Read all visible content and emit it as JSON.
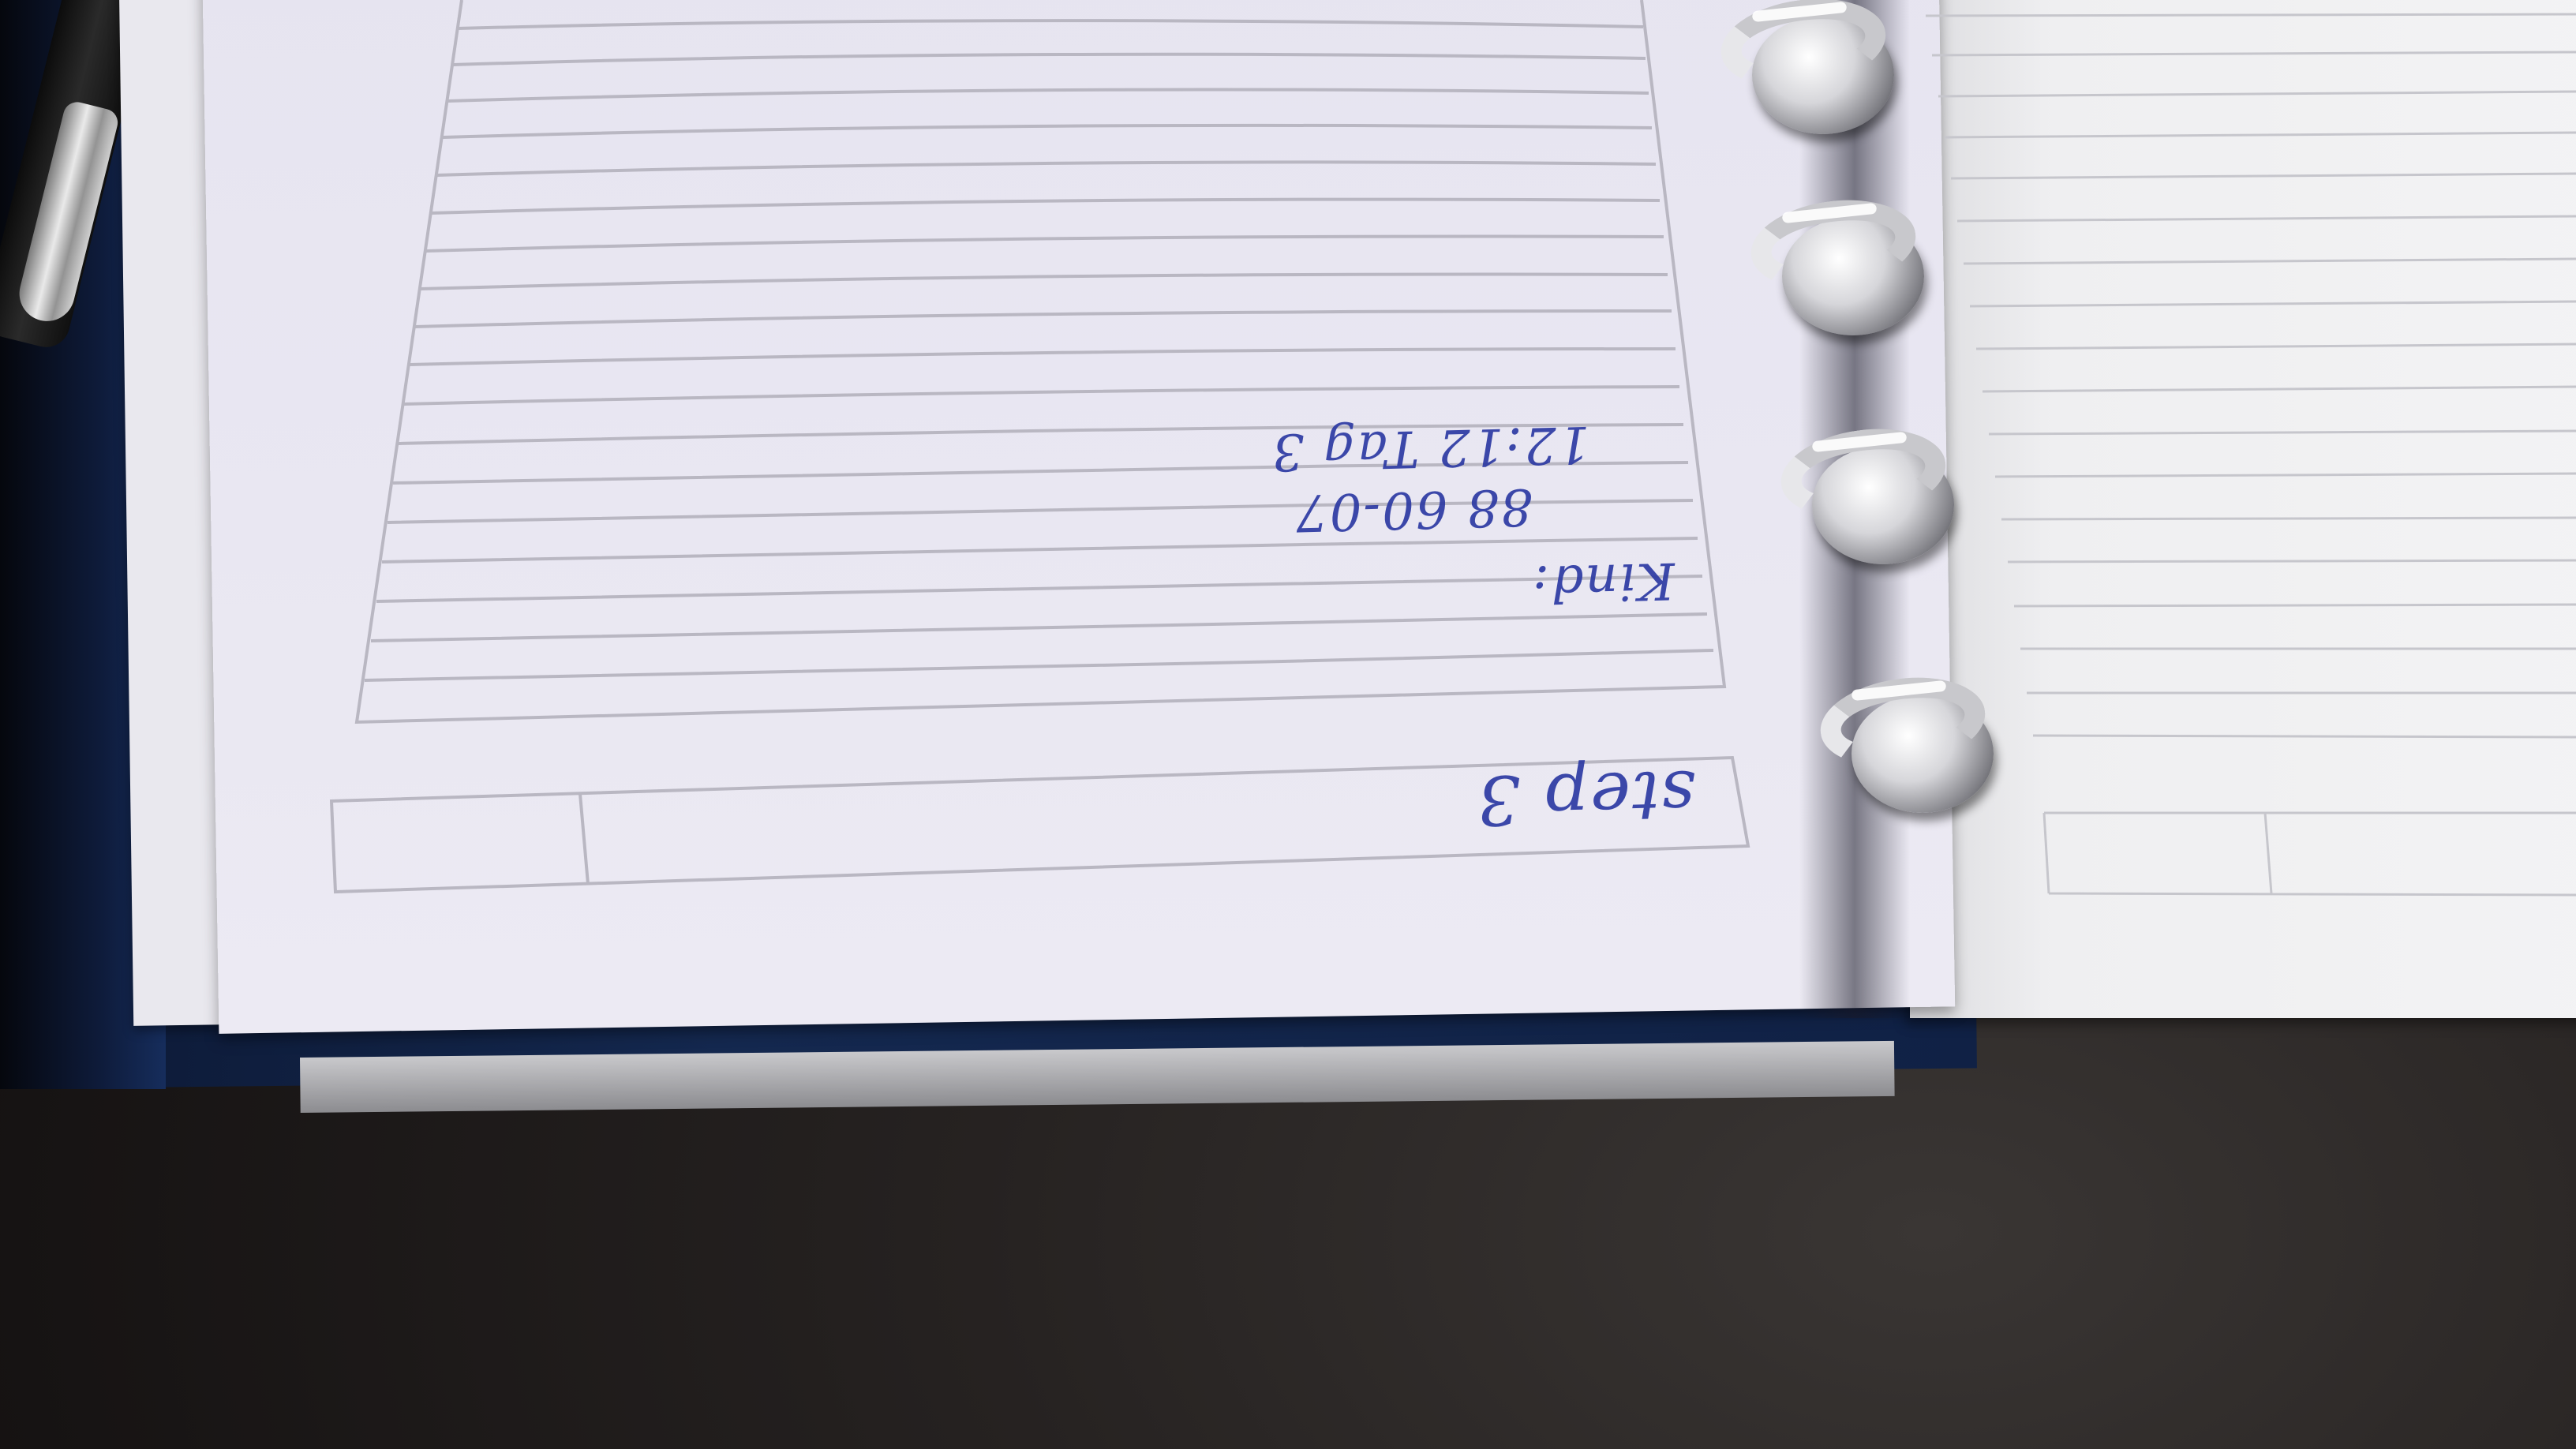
{
  "scene": {
    "description_colors": {
      "cover": "#14284f",
      "paper": "#e8e6f1",
      "ink": "#2d3aa3",
      "table": "#1a1716"
    }
  },
  "handwriting": {
    "kind_label": "Kind:",
    "phone": "88 60-07",
    "time": "12:12 Tag 3",
    "step": "step 3"
  }
}
